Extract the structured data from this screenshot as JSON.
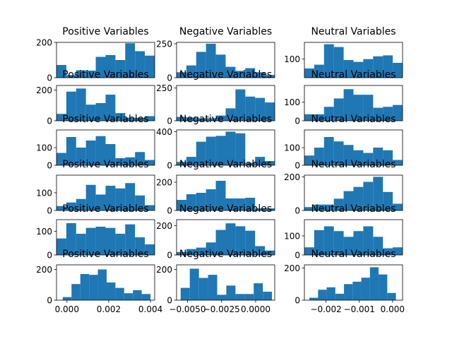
{
  "chart_data": {
    "type": "histogram-grid",
    "bar_color": "#1f77b4",
    "rows": 6,
    "cols": 3,
    "panels": [
      {
        "title": "Positive Variables",
        "bins": 10,
        "ylim": [
          0,
          200
        ],
        "yticks": [
          {
            "v": 0,
            "label": "0"
          },
          {
            "v": 200,
            "label": "200"
          }
        ],
        "values": [
          72,
          15,
          42,
          40,
          118,
          128,
          100,
          195,
          150,
          125
        ],
        "xticks": []
      },
      {
        "title": "Negative Variables",
        "bins": 10,
        "ylim": [
          0,
          260
        ],
        "yticks": [
          {
            "v": 0,
            "label": "0"
          },
          {
            "v": 250,
            "label": "250"
          }
        ],
        "values": [
          40,
          90,
          190,
          250,
          170,
          80,
          50,
          70,
          40,
          20
        ],
        "xticks": []
      },
      {
        "title": "Neutral Variables",
        "bins": 10,
        "ylim": [
          0,
          190
        ],
        "yticks": [
          {
            "v": 100,
            "label": "100"
          }
        ],
        "values": [
          50,
          70,
          180,
          165,
          95,
          85,
          100,
          115,
          120,
          80
        ],
        "xticks": []
      },
      {
        "title": "Positive Variables",
        "bins": 10,
        "ylim": [
          0,
          230
        ],
        "yticks": [
          {
            "v": 0,
            "label": "0"
          },
          {
            "v": 200,
            "label": "200"
          }
        ],
        "values": [
          45,
          190,
          210,
          105,
          115,
          170,
          50,
          20,
          20,
          30
        ],
        "xticks": []
      },
      {
        "title": "Negative Variables",
        "bins": 10,
        "ylim": [
          0,
          270
        ],
        "yticks": [
          {
            "v": 0,
            "label": "0"
          },
          {
            "v": 250,
            "label": "250"
          }
        ],
        "values": [
          30,
          25,
          20,
          20,
          40,
          95,
          240,
          185,
          175,
          140
        ],
        "xticks": []
      },
      {
        "title": "Neutral Variables",
        "bins": 10,
        "ylim": [
          0,
          190
        ],
        "yticks": [
          {
            "v": 0,
            "label": "0"
          },
          {
            "v": 100,
            "label": "100"
          }
        ],
        "values": [
          35,
          35,
          75,
          120,
          170,
          140,
          140,
          70,
          75,
          85
        ],
        "xticks": []
      },
      {
        "title": "Positive Variables",
        "bins": 10,
        "ylim": [
          0,
          200
        ],
        "yticks": [
          {
            "v": 0,
            "label": "0"
          },
          {
            "v": 100,
            "label": "100"
          }
        ],
        "values": [
          70,
          160,
          100,
          140,
          165,
          120,
          40,
          45,
          75,
          30
        ],
        "xticks": []
      },
      {
        "title": "Negative Variables",
        "bins": 10,
        "ylim": [
          0,
          420
        ],
        "yticks": [
          {
            "v": 0,
            "label": "0"
          },
          {
            "v": 400,
            "label": "400"
          }
        ],
        "values": [
          40,
          100,
          280,
          340,
          350,
          400,
          380,
          30,
          100,
          50
        ],
        "xticks": []
      },
      {
        "title": "Neutral Variables",
        "bins": 10,
        "ylim": [
          0,
          200
        ],
        "yticks": [
          {
            "v": 0,
            "label": "0"
          },
          {
            "v": 100,
            "label": "100"
          }
        ],
        "values": [
          55,
          100,
          160,
          135,
          115,
          85,
          70,
          100,
          85,
          30
        ],
        "xticks": []
      },
      {
        "title": "Positive Variables",
        "bins": 10,
        "ylim": [
          0,
          200
        ],
        "yticks": [
          {
            "v": 0,
            "label": "0"
          },
          {
            "v": 100,
            "label": "100"
          }
        ],
        "values": [
          25,
          45,
          65,
          145,
          90,
          140,
          125,
          155,
          85,
          30
        ],
        "xticks": []
      },
      {
        "title": "Negative Variables",
        "bins": 10,
        "ylim": [
          0,
          250
        ],
        "yticks": [
          {
            "v": 0,
            "label": "0"
          },
          {
            "v": 200,
            "label": "200"
          }
        ],
        "values": [
          75,
          115,
          125,
          150,
          210,
          85,
          85,
          90,
          15,
          15
        ],
        "xticks": []
      },
      {
        "title": "Neutral Variables",
        "bins": 10,
        "ylim": [
          0,
          210
        ],
        "yticks": [
          {
            "v": 0,
            "label": "0"
          },
          {
            "v": 200,
            "label": "200"
          }
        ],
        "values": [
          20,
          35,
          35,
          70,
          115,
          140,
          170,
          200,
          110,
          40
        ],
        "xticks": []
      },
      {
        "title": "Positive Variables",
        "bins": 10,
        "ylim": [
          0,
          150
        ],
        "yticks": [
          {
            "v": 0,
            "label": "0"
          },
          {
            "v": 100,
            "label": "100"
          }
        ],
        "values": [
          70,
          135,
          90,
          115,
          120,
          115,
          90,
          130,
          75,
          45
        ],
        "xticks": []
      },
      {
        "title": "Negative Variables",
        "bins": 10,
        "ylim": [
          0,
          240
        ],
        "yticks": [
          {
            "v": 0,
            "label": "0"
          },
          {
            "v": 200,
            "label": "200"
          }
        ],
        "values": [
          20,
          40,
          50,
          85,
          170,
          215,
          195,
          165,
          60,
          30
        ],
        "xticks": []
      },
      {
        "title": "Neutral Variables",
        "bins": 10,
        "ylim": [
          0,
          185
        ],
        "yticks": [
          {
            "v": 0,
            "label": "0"
          },
          {
            "v": 100,
            "label": "100"
          }
        ],
        "values": [
          40,
          130,
          150,
          125,
          95,
          125,
          150,
          95,
          35,
          40
        ],
        "xticks": []
      },
      {
        "title": "Positive Variables",
        "bins": 10,
        "xlim": [
          -0.0005,
          0.0042
        ],
        "binStart": -0.0002,
        "binWidth": 0.00042,
        "ylim": [
          0,
          230
        ],
        "yticks": [
          {
            "v": 0,
            "label": "0"
          },
          {
            "v": 200,
            "label": "200"
          }
        ],
        "values": [
          20,
          105,
          170,
          165,
          200,
          115,
          80,
          45,
          65,
          40
        ],
        "xticks": [
          {
            "v": 0.0,
            "label": "0.000"
          },
          {
            "v": 0.002,
            "label": "0.002"
          },
          {
            "v": 0.004,
            "label": "0.004"
          }
        ]
      },
      {
        "title": "Negative Variables",
        "bins": 10,
        "xlim": [
          -0.0058,
          0.0014
        ],
        "binStart": -0.0055,
        "binWidth": 0.00067,
        "ylim": [
          0,
          230
        ],
        "yticks": [
          {
            "v": 0,
            "label": "0"
          },
          {
            "v": 200,
            "label": "200"
          }
        ],
        "values": [
          80,
          205,
          145,
          165,
          35,
          95,
          40,
          40,
          110,
          55
        ],
        "xticks": [
          {
            "v": -0.005,
            "label": "−0.0050"
          },
          {
            "v": -0.0025,
            "label": "−0.0025"
          },
          {
            "v": 0.0,
            "label": "0.0000"
          }
        ]
      },
      {
        "title": "Neutral Variables",
        "bins": 10,
        "xlim": [
          -0.00265,
          0.0003
        ],
        "binStart": -0.0025,
        "binWidth": 0.00026,
        "ylim": [
          0,
          220
        ],
        "yticks": [
          {
            "v": 0,
            "label": "0"
          },
          {
            "v": 200,
            "label": "200"
          }
        ],
        "values": [
          15,
          65,
          80,
          40,
          100,
          115,
          140,
          205,
          160,
          45
        ],
        "xticks": [
          {
            "v": -0.002,
            "label": "−0.002"
          },
          {
            "v": -0.001,
            "label": "−0.001"
          },
          {
            "v": 0.0,
            "label": "0.000"
          }
        ]
      }
    ]
  }
}
